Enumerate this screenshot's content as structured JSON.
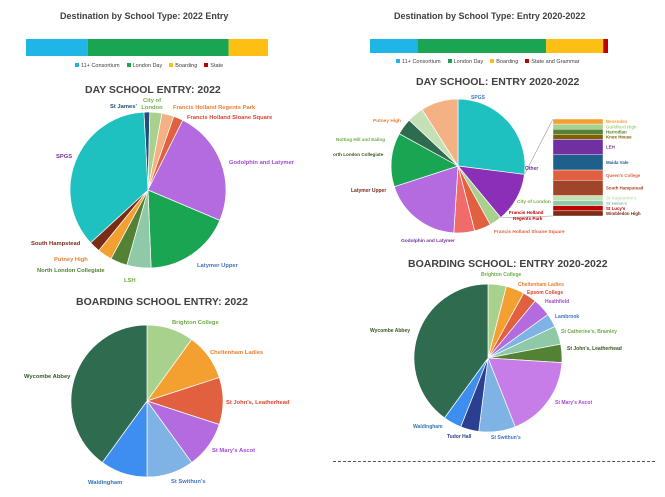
{
  "left": {
    "title": "Destination by School Type: 2022 Entry",
    "stacked": {
      "type": "bar",
      "segments": [
        {
          "name": "11+ Consortium",
          "value": 22,
          "color": "#1fb5e6"
        },
        {
          "name": "London Day",
          "value": 50,
          "color": "#1aa553"
        },
        {
          "name": "Boarding",
          "value": 14,
          "color": "#fdbf14"
        },
        {
          "name": "State",
          "value": 0,
          "color": "#c00000"
        }
      ]
    },
    "legend": [
      {
        "name": "11+ Consortium",
        "color": "#1fb5e6"
      },
      {
        "name": "London Day",
        "color": "#1aa553"
      },
      {
        "name": "Boarding",
        "color": "#fdbf14"
      },
      {
        "name": "State",
        "color": "#c00000"
      }
    ],
    "day": {
      "title": "DAY SCHOOL ENTRY: 2022",
      "chart_data": {
        "type": "pie",
        "slices": [
          {
            "label": "St James'",
            "value": 1.2,
            "color": "#1f4e79"
          },
          {
            "label": "City of London",
            "value": 2.5,
            "color": "#a9d18e"
          },
          {
            "label": "Francis Holland Regents Park",
            "value": 2.5,
            "color": "#f4b183"
          },
          {
            "label": "Francis Holland Sloane Square",
            "value": 2.0,
            "color": "#e06040"
          },
          {
            "label": "Godolphin and Latymer",
            "value": 24.0,
            "color": "#b46be0"
          },
          {
            "label": "Latymer Upper",
            "value": 18.0,
            "color": "#1aa553"
          },
          {
            "label": "LSH",
            "value": 5.0,
            "color": "#8fc9a8"
          },
          {
            "label": "North London Collegiate",
            "value": 3.5,
            "color": "#548235"
          },
          {
            "label": "Putney High",
            "value": 3.0,
            "color": "#f4a030"
          },
          {
            "label": "South Hampstead",
            "value": 2.3,
            "color": "#7b2c16"
          },
          {
            "label": "SPGS",
            "value": 36.0,
            "color": "#1fc0c0"
          }
        ]
      },
      "labels": {
        "st_james": "St James'",
        "city1": "City of",
        "city2": "London",
        "fh_regents": "Francis Holland Regents Park",
        "fh_sloane": "Francis Holland Sloane Square",
        "godolphin": "Godolphin and Latymer",
        "latymer": "Latymer Upper",
        "lsh": "LSH",
        "nlcs": "North London Collegiate",
        "putney": "Putney High",
        "south_hampstead": "South Hampstead",
        "spgs": "SPGS"
      }
    },
    "boarding": {
      "title": "BOARDING SCHOOL ENTRY: 2022",
      "chart_data": {
        "type": "pie",
        "slices": [
          {
            "label": "Brighton College",
            "value": 10,
            "color": "#a9d18e"
          },
          {
            "label": "Cheltenham Ladies",
            "value": 10,
            "color": "#f4a030"
          },
          {
            "label": "St John's, Leatherhead",
            "value": 10,
            "color": "#e06040"
          },
          {
            "label": "St Mary's Ascot",
            "value": 10,
            "color": "#b46be0"
          },
          {
            "label": "St Swithun's",
            "value": 10,
            "color": "#7fb2e5"
          },
          {
            "label": "Waldingham",
            "value": 10,
            "color": "#3d8ef0"
          },
          {
            "label": "Wycombe Abbey",
            "value": 40,
            "color": "#2e6b4f"
          }
        ]
      },
      "labels": {
        "brighton": "Brighton College",
        "cheltenham": "Cheltenham Ladies",
        "st_johns": "St John's, Leatherhead",
        "st_marys": "St Mary's Ascot",
        "st_swithuns": "St Swithun's",
        "waldingham": "Waldingham",
        "wycombe": "Wycombe Abbey"
      }
    }
  },
  "right": {
    "title": "Destination by School Type: Entry 2020-2022",
    "stacked": {
      "type": "bar",
      "segments": [
        {
          "name": "11+ Consortium",
          "value": 20,
          "color": "#1fb5e6"
        },
        {
          "name": "London Day",
          "value": 54,
          "color": "#1aa553"
        },
        {
          "name": "Boarding",
          "value": 24,
          "color": "#fdbf14"
        },
        {
          "name": "State and Grammar",
          "value": 2,
          "color": "#c00000"
        }
      ]
    },
    "legend": [
      {
        "name": "11+ Consortium",
        "color": "#1fb5e6"
      },
      {
        "name": "London Day",
        "color": "#1aa553"
      },
      {
        "name": "Boarding",
        "color": "#fdbf14"
      },
      {
        "name": "State and Grammar",
        "color": "#c00000"
      }
    ],
    "day": {
      "title": "DAY SCHOOL: ENTRY 2020-2022",
      "chart_data": {
        "type": "pie",
        "slices": [
          {
            "label": "SPGS",
            "value": 27,
            "color": "#1fc0c0"
          },
          {
            "label": "Other",
            "value": 12,
            "color": "#8b2fb8"
          },
          {
            "label": "City of London",
            "value": 3,
            "color": "#a9d18e"
          },
          {
            "label": "Francis Holland Regents Park",
            "value": 4,
            "color": "#e06040"
          },
          {
            "label": "Francis Holland Sloane Square",
            "value": 5,
            "color": "#f26b6b"
          },
          {
            "label": "Godolphin and Latymer",
            "value": 19,
            "color": "#b46be0"
          },
          {
            "label": "Latymer Upper",
            "value": 13,
            "color": "#1aa553"
          },
          {
            "label": "North London Collegiate",
            "value": 4,
            "color": "#2e6b4f"
          },
          {
            "label": "Notting Hill and Ealing",
            "value": 4,
            "color": "#c5e0b4"
          },
          {
            "label": "Putney High",
            "value": 9,
            "color": "#f4b183"
          }
        ]
      },
      "other_breakdown": [
        {
          "label": "Benenden",
          "value": 1,
          "color": "#f4a030"
        },
        {
          "label": "Guildford High",
          "value": 1,
          "color": "#a9d18e"
        },
        {
          "label": "Harrodian",
          "value": 1,
          "color": "#548235"
        },
        {
          "label": "Knox House",
          "value": 1,
          "color": "#7f6000"
        },
        {
          "label": "LEH",
          "value": 3,
          "color": "#7030a0"
        },
        {
          "label": "Maida Vale",
          "value": 3,
          "color": "#1f5f8b"
        },
        {
          "label": "Queen's College",
          "value": 2,
          "color": "#e06040"
        },
        {
          "label": "South Hampstead",
          "value": 3,
          "color": "#a0452a"
        },
        {
          "label": "St Augustine's",
          "value": 1,
          "color": "#c5e0b4"
        },
        {
          "label": "St Helen's",
          "value": 1,
          "color": "#8fc9a8"
        },
        {
          "label": "St Lucy's",
          "value": 1,
          "color": "#c00000"
        },
        {
          "label": "Wimbledon High",
          "value": 1,
          "color": "#7b2c16"
        }
      ],
      "labels": {
        "spgs": "SPGS",
        "other": "Other",
        "city": "City of London",
        "fh_regents1": "Francis Holland",
        "fh_regents2": "Regents Park",
        "fh_sloane": "Francis Holland Sloane Square",
        "godolphin": "Godolphin and Latymer",
        "latymer": "Latymer Upper",
        "nlcs": "orth London Collegiate",
        "notting": "Notting Hill and Ealing",
        "putney": "Putney High"
      }
    },
    "boarding": {
      "title": "BOARDING SCHOOL: ENTRY 2020-2022",
      "chart_data": {
        "type": "pie",
        "slices": [
          {
            "label": "Brighton College",
            "value": 4,
            "color": "#a9d18e"
          },
          {
            "label": "Cheltenham Ladies",
            "value": 4,
            "color": "#f4a030"
          },
          {
            "label": "Epsom College",
            "value": 3,
            "color": "#e06040"
          },
          {
            "label": "Heathfield",
            "value": 4,
            "color": "#b46be0"
          },
          {
            "label": "Lambrook",
            "value": 3,
            "color": "#7fb2e5"
          },
          {
            "label": "St Catherine's, Bramley",
            "value": 4,
            "color": "#8fc9a8"
          },
          {
            "label": "St John's, Leatherhead",
            "value": 4,
            "color": "#548235"
          },
          {
            "label": "St Mary's Ascot",
            "value": 18,
            "color": "#c77de8"
          },
          {
            "label": "St Swithun's",
            "value": 8,
            "color": "#7fb2e5"
          },
          {
            "label": "Tudor Hall",
            "value": 4,
            "color": "#2a3f8f"
          },
          {
            "label": "Waldingham",
            "value": 4,
            "color": "#3d8ef0"
          },
          {
            "label": "Wycombe Abbey",
            "value": 40,
            "color": "#2e6b4f"
          }
        ]
      },
      "labels": {
        "brighton": "Brighton College",
        "cheltenham": "Cheltenham Ladies",
        "epsom": "Epsom College",
        "heathfield": "Heathfield",
        "lambrook": "Lambrook",
        "st_catherines": "St Catherine's, Bramley",
        "st_johns": "St John's, Leatherhead",
        "st_marys": "St Mary's Ascot",
        "st_swithuns": "St Swithun's",
        "tudor": "Tudor Hall",
        "waldingham": "Waldingham",
        "wycombe": "Wycombe Abbey"
      }
    }
  }
}
